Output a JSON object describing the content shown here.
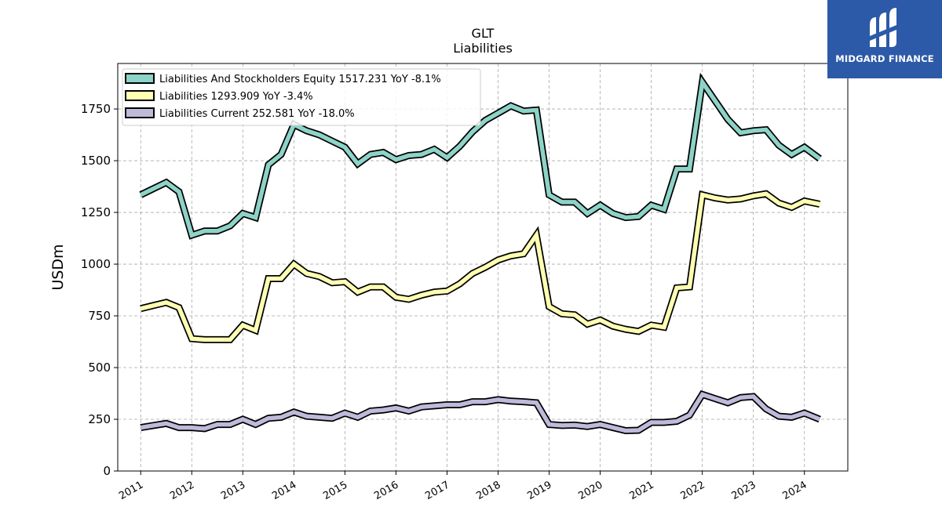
{
  "chart_data": {
    "type": "line",
    "title": "GLT",
    "subtitle": "Liabilities",
    "xlabel": "",
    "ylabel": "USDm",
    "ylim": [
      0,
      1970
    ],
    "xlim": [
      2010.55,
      2024.85
    ],
    "yticks": [
      0,
      250,
      500,
      750,
      1000,
      1250,
      1500,
      1750
    ],
    "xticks": [
      "2011",
      "2012",
      "2013",
      "2014",
      "2015",
      "2016",
      "2017",
      "2018",
      "2019",
      "2020",
      "2021",
      "2022",
      "2023",
      "2024"
    ],
    "grid": true,
    "legend_position": "top-left",
    "series": [
      {
        "name": "Liabilities And Stockholders Equity",
        "legend_label": "Liabilities And Stockholders Equity  1517.231 YoY -8.1%",
        "color": "#8dd3c7",
        "points": [
          [
            2011.0,
            1335
          ],
          [
            2011.25,
            1365
          ],
          [
            2011.5,
            1395
          ],
          [
            2011.75,
            1350
          ],
          [
            2012.0,
            1140
          ],
          [
            2012.25,
            1160
          ],
          [
            2012.5,
            1160
          ],
          [
            2012.75,
            1185
          ],
          [
            2013.0,
            1245
          ],
          [
            2013.25,
            1225
          ],
          [
            2013.5,
            1480
          ],
          [
            2013.75,
            1530
          ],
          [
            2014.0,
            1675
          ],
          [
            2014.25,
            1645
          ],
          [
            2014.5,
            1625
          ],
          [
            2014.75,
            1595
          ],
          [
            2015.0,
            1565
          ],
          [
            2015.25,
            1485
          ],
          [
            2015.5,
            1530
          ],
          [
            2015.75,
            1540
          ],
          [
            2016.0,
            1505
          ],
          [
            2016.25,
            1525
          ],
          [
            2016.5,
            1530
          ],
          [
            2016.75,
            1555
          ],
          [
            2017.0,
            1515
          ],
          [
            2017.25,
            1570
          ],
          [
            2017.5,
            1640
          ],
          [
            2017.75,
            1695
          ],
          [
            2018.0,
            1730
          ],
          [
            2018.25,
            1765
          ],
          [
            2018.5,
            1740
          ],
          [
            2018.75,
            1745
          ],
          [
            2019.0,
            1335
          ],
          [
            2019.25,
            1300
          ],
          [
            2019.5,
            1300
          ],
          [
            2019.75,
            1245
          ],
          [
            2020.0,
            1285
          ],
          [
            2020.25,
            1245
          ],
          [
            2020.5,
            1225
          ],
          [
            2020.75,
            1230
          ],
          [
            2021.0,
            1285
          ],
          [
            2021.25,
            1265
          ],
          [
            2021.5,
            1460
          ],
          [
            2021.75,
            1460
          ],
          [
            2022.0,
            1880
          ],
          [
            2022.25,
            1790
          ],
          [
            2022.5,
            1700
          ],
          [
            2022.75,
            1635
          ],
          [
            2023.0,
            1645
          ],
          [
            2023.25,
            1650
          ],
          [
            2023.5,
            1575
          ],
          [
            2023.75,
            1530
          ],
          [
            2024.0,
            1565
          ],
          [
            2024.3,
            1510
          ]
        ]
      },
      {
        "name": "Liabilities",
        "legend_label": "Liabilities  1293.909 YoY -3.4%",
        "color": "#ffffb3",
        "points": [
          [
            2011.0,
            785
          ],
          [
            2011.25,
            800
          ],
          [
            2011.5,
            815
          ],
          [
            2011.75,
            790
          ],
          [
            2012.0,
            640
          ],
          [
            2012.25,
            635
          ],
          [
            2012.5,
            635
          ],
          [
            2012.75,
            635
          ],
          [
            2013.0,
            705
          ],
          [
            2013.25,
            680
          ],
          [
            2013.5,
            930
          ],
          [
            2013.75,
            930
          ],
          [
            2014.0,
            1000
          ],
          [
            2014.25,
            955
          ],
          [
            2014.5,
            940
          ],
          [
            2014.75,
            910
          ],
          [
            2015.0,
            915
          ],
          [
            2015.25,
            865
          ],
          [
            2015.5,
            890
          ],
          [
            2015.75,
            890
          ],
          [
            2016.0,
            840
          ],
          [
            2016.25,
            830
          ],
          [
            2016.5,
            850
          ],
          [
            2016.75,
            865
          ],
          [
            2017.0,
            870
          ],
          [
            2017.25,
            905
          ],
          [
            2017.5,
            955
          ],
          [
            2017.75,
            985
          ],
          [
            2018.0,
            1020
          ],
          [
            2018.25,
            1040
          ],
          [
            2018.5,
            1050
          ],
          [
            2018.75,
            1140
          ],
          [
            2019.0,
            795
          ],
          [
            2019.25,
            760
          ],
          [
            2019.5,
            755
          ],
          [
            2019.75,
            710
          ],
          [
            2020.0,
            730
          ],
          [
            2020.25,
            700
          ],
          [
            2020.5,
            685
          ],
          [
            2020.75,
            675
          ],
          [
            2021.0,
            705
          ],
          [
            2021.25,
            695
          ],
          [
            2021.5,
            885
          ],
          [
            2021.75,
            890
          ],
          [
            2022.0,
            1335
          ],
          [
            2022.25,
            1320
          ],
          [
            2022.5,
            1310
          ],
          [
            2022.75,
            1315
          ],
          [
            2023.0,
            1330
          ],
          [
            2023.25,
            1340
          ],
          [
            2023.5,
            1295
          ],
          [
            2023.75,
            1275
          ],
          [
            2024.0,
            1305
          ],
          [
            2024.3,
            1290
          ]
        ]
      },
      {
        "name": "Liabilities Current",
        "legend_label": "Liabilities Current  252.581 YoY -18.0%",
        "color": "#bebada",
        "points": [
          [
            2011.0,
            210
          ],
          [
            2011.25,
            220
          ],
          [
            2011.5,
            230
          ],
          [
            2011.75,
            210
          ],
          [
            2012.0,
            210
          ],
          [
            2012.25,
            205
          ],
          [
            2012.5,
            225
          ],
          [
            2012.75,
            225
          ],
          [
            2013.0,
            250
          ],
          [
            2013.25,
            225
          ],
          [
            2013.5,
            255
          ],
          [
            2013.75,
            260
          ],
          [
            2014.0,
            285
          ],
          [
            2014.25,
            265
          ],
          [
            2014.5,
            260
          ],
          [
            2014.75,
            255
          ],
          [
            2015.0,
            280
          ],
          [
            2015.25,
            260
          ],
          [
            2015.5,
            290
          ],
          [
            2015.75,
            295
          ],
          [
            2016.0,
            305
          ],
          [
            2016.25,
            290
          ],
          [
            2016.5,
            310
          ],
          [
            2016.75,
            315
          ],
          [
            2017.0,
            320
          ],
          [
            2017.25,
            320
          ],
          [
            2017.5,
            335
          ],
          [
            2017.75,
            335
          ],
          [
            2018.0,
            345
          ],
          [
            2018.25,
            338
          ],
          [
            2018.5,
            335
          ],
          [
            2018.75,
            330
          ],
          [
            2019.0,
            225
          ],
          [
            2019.25,
            220
          ],
          [
            2019.5,
            222
          ],
          [
            2019.75,
            215
          ],
          [
            2020.0,
            225
          ],
          [
            2020.25,
            210
          ],
          [
            2020.5,
            195
          ],
          [
            2020.75,
            197
          ],
          [
            2021.0,
            235
          ],
          [
            2021.25,
            235
          ],
          [
            2021.5,
            240
          ],
          [
            2021.75,
            270
          ],
          [
            2022.0,
            370
          ],
          [
            2022.25,
            350
          ],
          [
            2022.5,
            330
          ],
          [
            2022.75,
            355
          ],
          [
            2023.0,
            360
          ],
          [
            2023.25,
            300
          ],
          [
            2023.5,
            265
          ],
          [
            2023.75,
            260
          ],
          [
            2024.0,
            280
          ],
          [
            2024.3,
            250
          ]
        ]
      }
    ]
  },
  "logo": {
    "brand": "MIDGARD FINANCE",
    "background": "#2d5aa8"
  }
}
